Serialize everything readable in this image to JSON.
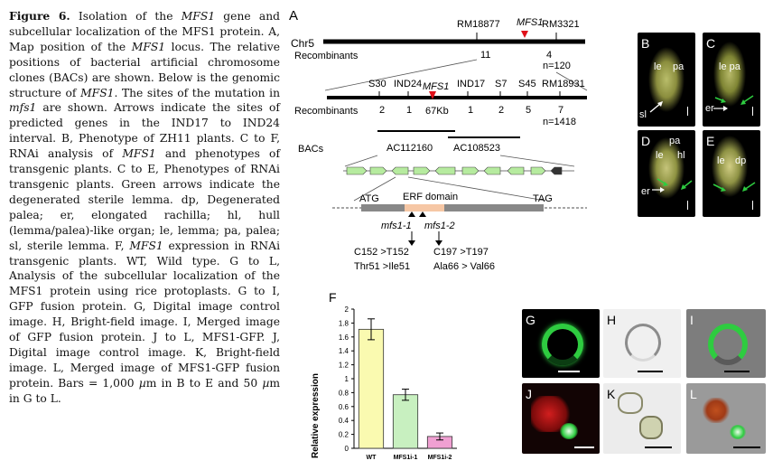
{
  "caption": {
    "figure_label": "Figure 6.",
    "s1": " Isolation of the ",
    "mfs1_a": "MFS1",
    "s2": " gene and subcellular localization of the MFS1 protein. A, Map position of the ",
    "mfs1_b": "MFS1",
    "s3": " locus. The relative positions of bacterial artificial chromosome clones (BACs) are shown. Below is the genomic structure of ",
    "mfs1_c": "MFS1",
    "s4": ". The sites of the mutation in ",
    "mfs1_d": "mfs1",
    "s5": " are shown. Arrows indicate the sites of predicted genes in the IND17 to IND24 interval. B, Phenotype of ZH11 plants. C to F, RNAi analysis of ",
    "mfs1_e": "MFS1",
    "s6": " and phenotypes of transgenic plants. C to E, Phenotypes of RNAi transgenic plants. Green arrows indicate the degenerated sterile lemma. dp, Degenerated palea; er, elongated rachilla; hl, hull (lemma/palea)-like organ; le, lemma; pa, palea; sl, sterile lemma. F, ",
    "mfs1_f": "MFS1",
    "s7": " expression in RNAi transgenic plants. WT, Wild type. G to L, Analysis of the subcellular localization of the MFS1 protein using rice protoplasts. G to I, GFP fusion protein. G, Digital image control image. H, Bright-field image. I, Merged image of GFP fusion protein. J to L, MFS1-GFP. J, Digital image control image. K, Bright-field image. L, Merged image of MFS1-GFP fusion protein. Bars = 1,000 ",
    "mu1": "µ",
    "s8": "m in B to E and 50 ",
    "mu2": "µ",
    "s9": "m in G to L."
  },
  "panel_a": {
    "label": "A",
    "chr": "Chr5",
    "markers_top": [
      "RM18877",
      "MFS1",
      "RM3321"
    ],
    "recombinants_label": "Recombinants",
    "rec_top": [
      "11",
      "4"
    ],
    "n_top": "n=120",
    "markers_mid": [
      "S30",
      "IND24",
      "MFS1",
      "IND17",
      "S7",
      "S45",
      "RM18931"
    ],
    "rec_mid": [
      "2",
      "1",
      "1",
      "2",
      "5",
      "7"
    ],
    "distance": "67Kb",
    "n_mid": "n=1418",
    "bacs_label": "BACs",
    "bacs": [
      "AC112160",
      "AC108523"
    ],
    "gene": {
      "atg": "ATG",
      "domain": "ERF domain",
      "tag": "TAG"
    },
    "mutants": [
      "mfs1-1",
      "mfs1-2"
    ],
    "mutations": [
      "C152 >T152",
      "C197 >T197"
    ],
    "aa_changes": [
      "Thr51 >Ile51",
      "Ala66 > Val66"
    ]
  },
  "panel_f": {
    "label": "F"
  },
  "photos": {
    "B": {
      "label": "B",
      "tags": [
        "le",
        "pa",
        "sl"
      ]
    },
    "C": {
      "label": "C",
      "tags": [
        "le pa",
        "er"
      ]
    },
    "D": {
      "label": "D",
      "tags": [
        "pa",
        "le",
        "hl",
        "er"
      ]
    },
    "E": {
      "label": "E",
      "tags": [
        "le",
        "dp"
      ]
    },
    "G": {
      "label": "G"
    },
    "H": {
      "label": "H"
    },
    "I": {
      "label": "I"
    },
    "J": {
      "label": "J"
    },
    "K": {
      "label": "K"
    },
    "L": {
      "label": "L"
    }
  },
  "colors": {
    "marker": "#e0101a",
    "gfp": "#2ecc40",
    "red": "#d21e1e"
  },
  "chart_data": {
    "type": "bar",
    "categories": [
      "WT",
      "MFS1i-1",
      "MFS1i-2"
    ],
    "values": [
      1.71,
      0.77,
      0.17
    ],
    "errors": [
      0.15,
      0.08,
      0.05
    ],
    "colors": [
      "#fafab0",
      "#c8f0c0",
      "#f0a0d2"
    ],
    "ylabel": "Relative expression",
    "ylim": [
      0,
      2
    ],
    "yticks": [
      "0",
      "0.2",
      "0.4",
      "0.6",
      "0.8",
      "1",
      "1.2",
      "1.4",
      "1.6",
      "1.8",
      "2"
    ],
    "grid": false
  }
}
